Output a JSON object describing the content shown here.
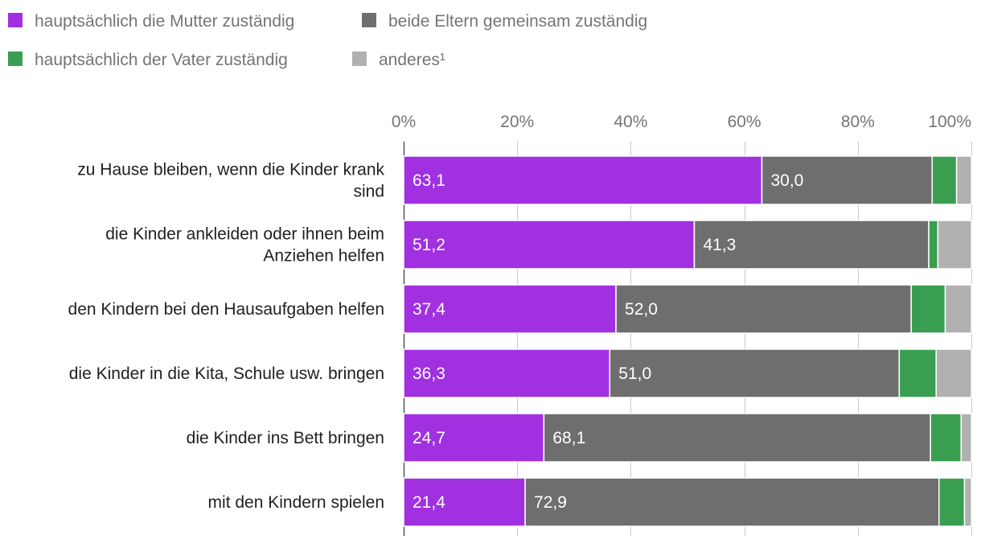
{
  "chart_data": {
    "type": "bar",
    "orientation": "horizontal",
    "stacked": true,
    "xlim": [
      0,
      100
    ],
    "ticks": [
      0,
      20,
      40,
      60,
      80,
      100
    ],
    "tick_labels": [
      "0%",
      "20%",
      "40%",
      "60%",
      "80%",
      "100%"
    ],
    "grid": true,
    "legend_position": "top-left",
    "categories": [
      [
        "zu Hause bleiben, wenn die Kinder krank",
        "sind"
      ],
      [
        "die Kinder ankleiden oder ihnen beim",
        "Anziehen helfen"
      ],
      [
        "den Kindern bei den Hausaufgaben helfen"
      ],
      [
        "die Kinder in die Kita, Schule usw. bringen"
      ],
      [
        "die Kinder ins Bett bringen"
      ],
      [
        "mit den Kindern spielen"
      ]
    ],
    "series": [
      {
        "name": "hauptsächlich die Mutter zuständig",
        "color": "#a030e0",
        "values": [
          63.1,
          51.2,
          37.4,
          36.3,
          24.7,
          21.4
        ],
        "labels": [
          "63,1",
          "51,2",
          "37,4",
          "36,3",
          "24,7",
          "21,4"
        ]
      },
      {
        "name": "beide Eltern gemeinsam zuständig",
        "color": "#6e6e6e",
        "values": [
          30.0,
          41.3,
          52.0,
          51.0,
          68.1,
          72.9
        ],
        "labels": [
          "30,0",
          "41,3",
          "52,0",
          "51,0",
          "68,1",
          "72,9"
        ]
      },
      {
        "name": "hauptsächlich der Vater zuständig",
        "color": "#3a9e50",
        "values": [
          4.3,
          1.6,
          6.0,
          6.5,
          5.4,
          4.5
        ],
        "labels": []
      },
      {
        "name": "anderes¹",
        "color": "#b0b0b0",
        "values": [
          2.6,
          5.9,
          4.6,
          6.2,
          1.8,
          1.2
        ],
        "labels": []
      }
    ],
    "legend_order": [
      0,
      1,
      2,
      3
    ]
  }
}
